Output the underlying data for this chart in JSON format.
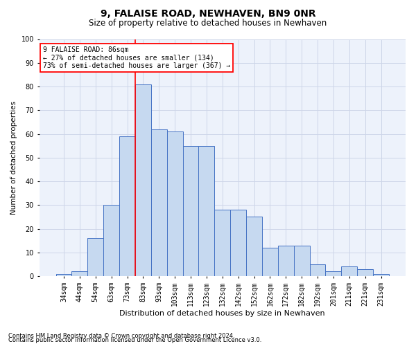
{
  "title": "9, FALAISE ROAD, NEWHAVEN, BN9 0NR",
  "subtitle": "Size of property relative to detached houses in Newhaven",
  "xlabel": "Distribution of detached houses by size in Newhaven",
  "ylabel": "Number of detached properties",
  "categories": [
    "34sqm",
    "44sqm",
    "54sqm",
    "63sqm",
    "73sqm",
    "83sqm",
    "93sqm",
    "103sqm",
    "113sqm",
    "123sqm",
    "132sqm",
    "142sqm",
    "152sqm",
    "162sqm",
    "172sqm",
    "182sqm",
    "192sqm",
    "201sqm",
    "211sqm",
    "221sqm",
    "231sqm"
  ],
  "values": [
    1,
    2,
    16,
    30,
    59,
    81,
    62,
    61,
    55,
    55,
    28,
    28,
    25,
    12,
    13,
    13,
    5,
    2,
    4,
    3,
    1
  ],
  "bar_color": "#c6d9f0",
  "bar_edge_color": "#4472c4",
  "grid_color": "#cdd5e8",
  "background_color": "#edf2fb",
  "vline_color": "red",
  "vline_x": 4.5,
  "annotation_text": "9 FALAISE ROAD: 86sqm\n← 27% of detached houses are smaller (134)\n73% of semi-detached houses are larger (367) →",
  "annotation_box_color": "white",
  "annotation_box_edge": "red",
  "ylim": [
    0,
    100
  ],
  "yticks": [
    0,
    10,
    20,
    30,
    40,
    50,
    60,
    70,
    80,
    90,
    100
  ],
  "title_fontsize": 10,
  "subtitle_fontsize": 8.5,
  "xlabel_fontsize": 8,
  "ylabel_fontsize": 7.5,
  "tick_fontsize": 7,
  "annot_fontsize": 7,
  "footnote1": "Contains HM Land Registry data © Crown copyright and database right 2024.",
  "footnote2": "Contains public sector information licensed under the Open Government Licence v3.0.",
  "footnote_fontsize": 6
}
